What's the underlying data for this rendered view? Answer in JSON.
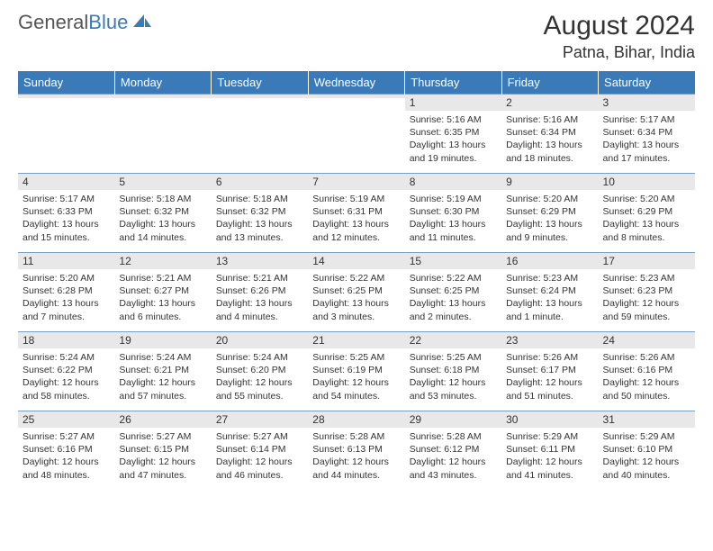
{
  "brand": {
    "part1": "General",
    "part2": "Blue"
  },
  "title": "August 2024",
  "location": "Patna, Bihar, India",
  "colors": {
    "header_bg": "#3a7ab8",
    "header_text": "#ffffff",
    "daynum_bg": "#e8e8e8",
    "border": "#7a9ec0",
    "text": "#333333",
    "background": "#ffffff"
  },
  "day_names": [
    "Sunday",
    "Monday",
    "Tuesday",
    "Wednesday",
    "Thursday",
    "Friday",
    "Saturday"
  ],
  "weeks": [
    [
      {
        "num": "",
        "sunrise": "",
        "sunset": "",
        "daylight1": "",
        "daylight2": ""
      },
      {
        "num": "",
        "sunrise": "",
        "sunset": "",
        "daylight1": "",
        "daylight2": ""
      },
      {
        "num": "",
        "sunrise": "",
        "sunset": "",
        "daylight1": "",
        "daylight2": ""
      },
      {
        "num": "",
        "sunrise": "",
        "sunset": "",
        "daylight1": "",
        "daylight2": ""
      },
      {
        "num": "1",
        "sunrise": "Sunrise: 5:16 AM",
        "sunset": "Sunset: 6:35 PM",
        "daylight1": "Daylight: 13 hours",
        "daylight2": "and 19 minutes."
      },
      {
        "num": "2",
        "sunrise": "Sunrise: 5:16 AM",
        "sunset": "Sunset: 6:34 PM",
        "daylight1": "Daylight: 13 hours",
        "daylight2": "and 18 minutes."
      },
      {
        "num": "3",
        "sunrise": "Sunrise: 5:17 AM",
        "sunset": "Sunset: 6:34 PM",
        "daylight1": "Daylight: 13 hours",
        "daylight2": "and 17 minutes."
      }
    ],
    [
      {
        "num": "4",
        "sunrise": "Sunrise: 5:17 AM",
        "sunset": "Sunset: 6:33 PM",
        "daylight1": "Daylight: 13 hours",
        "daylight2": "and 15 minutes."
      },
      {
        "num": "5",
        "sunrise": "Sunrise: 5:18 AM",
        "sunset": "Sunset: 6:32 PM",
        "daylight1": "Daylight: 13 hours",
        "daylight2": "and 14 minutes."
      },
      {
        "num": "6",
        "sunrise": "Sunrise: 5:18 AM",
        "sunset": "Sunset: 6:32 PM",
        "daylight1": "Daylight: 13 hours",
        "daylight2": "and 13 minutes."
      },
      {
        "num": "7",
        "sunrise": "Sunrise: 5:19 AM",
        "sunset": "Sunset: 6:31 PM",
        "daylight1": "Daylight: 13 hours",
        "daylight2": "and 12 minutes."
      },
      {
        "num": "8",
        "sunrise": "Sunrise: 5:19 AM",
        "sunset": "Sunset: 6:30 PM",
        "daylight1": "Daylight: 13 hours",
        "daylight2": "and 11 minutes."
      },
      {
        "num": "9",
        "sunrise": "Sunrise: 5:20 AM",
        "sunset": "Sunset: 6:29 PM",
        "daylight1": "Daylight: 13 hours",
        "daylight2": "and 9 minutes."
      },
      {
        "num": "10",
        "sunrise": "Sunrise: 5:20 AM",
        "sunset": "Sunset: 6:29 PM",
        "daylight1": "Daylight: 13 hours",
        "daylight2": "and 8 minutes."
      }
    ],
    [
      {
        "num": "11",
        "sunrise": "Sunrise: 5:20 AM",
        "sunset": "Sunset: 6:28 PM",
        "daylight1": "Daylight: 13 hours",
        "daylight2": "and 7 minutes."
      },
      {
        "num": "12",
        "sunrise": "Sunrise: 5:21 AM",
        "sunset": "Sunset: 6:27 PM",
        "daylight1": "Daylight: 13 hours",
        "daylight2": "and 6 minutes."
      },
      {
        "num": "13",
        "sunrise": "Sunrise: 5:21 AM",
        "sunset": "Sunset: 6:26 PM",
        "daylight1": "Daylight: 13 hours",
        "daylight2": "and 4 minutes."
      },
      {
        "num": "14",
        "sunrise": "Sunrise: 5:22 AM",
        "sunset": "Sunset: 6:25 PM",
        "daylight1": "Daylight: 13 hours",
        "daylight2": "and 3 minutes."
      },
      {
        "num": "15",
        "sunrise": "Sunrise: 5:22 AM",
        "sunset": "Sunset: 6:25 PM",
        "daylight1": "Daylight: 13 hours",
        "daylight2": "and 2 minutes."
      },
      {
        "num": "16",
        "sunrise": "Sunrise: 5:23 AM",
        "sunset": "Sunset: 6:24 PM",
        "daylight1": "Daylight: 13 hours",
        "daylight2": "and 1 minute."
      },
      {
        "num": "17",
        "sunrise": "Sunrise: 5:23 AM",
        "sunset": "Sunset: 6:23 PM",
        "daylight1": "Daylight: 12 hours",
        "daylight2": "and 59 minutes."
      }
    ],
    [
      {
        "num": "18",
        "sunrise": "Sunrise: 5:24 AM",
        "sunset": "Sunset: 6:22 PM",
        "daylight1": "Daylight: 12 hours",
        "daylight2": "and 58 minutes."
      },
      {
        "num": "19",
        "sunrise": "Sunrise: 5:24 AM",
        "sunset": "Sunset: 6:21 PM",
        "daylight1": "Daylight: 12 hours",
        "daylight2": "and 57 minutes."
      },
      {
        "num": "20",
        "sunrise": "Sunrise: 5:24 AM",
        "sunset": "Sunset: 6:20 PM",
        "daylight1": "Daylight: 12 hours",
        "daylight2": "and 55 minutes."
      },
      {
        "num": "21",
        "sunrise": "Sunrise: 5:25 AM",
        "sunset": "Sunset: 6:19 PM",
        "daylight1": "Daylight: 12 hours",
        "daylight2": "and 54 minutes."
      },
      {
        "num": "22",
        "sunrise": "Sunrise: 5:25 AM",
        "sunset": "Sunset: 6:18 PM",
        "daylight1": "Daylight: 12 hours",
        "daylight2": "and 53 minutes."
      },
      {
        "num": "23",
        "sunrise": "Sunrise: 5:26 AM",
        "sunset": "Sunset: 6:17 PM",
        "daylight1": "Daylight: 12 hours",
        "daylight2": "and 51 minutes."
      },
      {
        "num": "24",
        "sunrise": "Sunrise: 5:26 AM",
        "sunset": "Sunset: 6:16 PM",
        "daylight1": "Daylight: 12 hours",
        "daylight2": "and 50 minutes."
      }
    ],
    [
      {
        "num": "25",
        "sunrise": "Sunrise: 5:27 AM",
        "sunset": "Sunset: 6:16 PM",
        "daylight1": "Daylight: 12 hours",
        "daylight2": "and 48 minutes."
      },
      {
        "num": "26",
        "sunrise": "Sunrise: 5:27 AM",
        "sunset": "Sunset: 6:15 PM",
        "daylight1": "Daylight: 12 hours",
        "daylight2": "and 47 minutes."
      },
      {
        "num": "27",
        "sunrise": "Sunrise: 5:27 AM",
        "sunset": "Sunset: 6:14 PM",
        "daylight1": "Daylight: 12 hours",
        "daylight2": "and 46 minutes."
      },
      {
        "num": "28",
        "sunrise": "Sunrise: 5:28 AM",
        "sunset": "Sunset: 6:13 PM",
        "daylight1": "Daylight: 12 hours",
        "daylight2": "and 44 minutes."
      },
      {
        "num": "29",
        "sunrise": "Sunrise: 5:28 AM",
        "sunset": "Sunset: 6:12 PM",
        "daylight1": "Daylight: 12 hours",
        "daylight2": "and 43 minutes."
      },
      {
        "num": "30",
        "sunrise": "Sunrise: 5:29 AM",
        "sunset": "Sunset: 6:11 PM",
        "daylight1": "Daylight: 12 hours",
        "daylight2": "and 41 minutes."
      },
      {
        "num": "31",
        "sunrise": "Sunrise: 5:29 AM",
        "sunset": "Sunset: 6:10 PM",
        "daylight1": "Daylight: 12 hours",
        "daylight2": "and 40 minutes."
      }
    ]
  ]
}
